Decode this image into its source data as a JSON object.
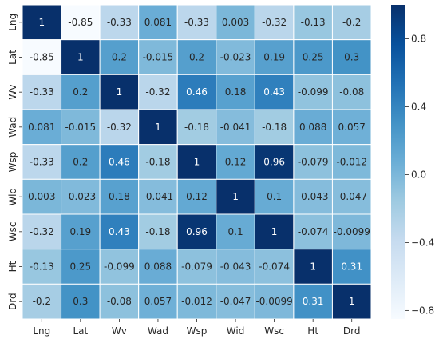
{
  "chart_data": {
    "type": "heatmap",
    "title": "",
    "xlabel": "",
    "ylabel": "",
    "x_labels": [
      "Lng",
      "Lat",
      "Wv",
      "Wad",
      "Wsp",
      "Wid",
      "Wsc",
      "Ht",
      "Drd"
    ],
    "y_labels": [
      "Lng",
      "Lat",
      "Wv",
      "Wad",
      "Wsp",
      "Wid",
      "Wsc",
      "Ht",
      "Drd"
    ],
    "values": [
      [
        1,
        -0.85,
        -0.33,
        0.081,
        -0.33,
        0.003,
        -0.32,
        -0.13,
        -0.2
      ],
      [
        -0.85,
        1,
        0.2,
        -0.015,
        0.2,
        -0.023,
        0.19,
        0.25,
        0.3
      ],
      [
        -0.33,
        0.2,
        1,
        -0.32,
        0.46,
        0.18,
        0.43,
        -0.099,
        -0.08
      ],
      [
        0.081,
        -0.015,
        -0.32,
        1,
        -0.18,
        -0.041,
        -0.18,
        0.088,
        0.057
      ],
      [
        -0.33,
        0.2,
        0.46,
        -0.18,
        1,
        0.12,
        0.96,
        -0.079,
        -0.012
      ],
      [
        0.003,
        -0.023,
        0.18,
        -0.041,
        0.12,
        1,
        0.1,
        -0.043,
        -0.047
      ],
      [
        -0.32,
        0.19,
        0.43,
        -0.18,
        0.96,
        0.1,
        1,
        -0.074,
        -0.0099
      ],
      [
        -0.13,
        0.25,
        -0.099,
        0.088,
        -0.079,
        -0.043,
        -0.074,
        1,
        0.31
      ],
      [
        -0.2,
        0.3,
        -0.08,
        0.057,
        -0.012,
        -0.047,
        -0.0099,
        0.31,
        1
      ]
    ],
    "cell_labels": [
      [
        "1",
        "-0.85",
        "-0.33",
        "0.081",
        "-0.33",
        "0.003",
        "-0.32",
        "-0.13",
        "-0.2"
      ],
      [
        "-0.85",
        "1",
        "0.2",
        "-0.015",
        "0.2",
        "-0.023",
        "0.19",
        "0.25",
        "0.3"
      ],
      [
        "-0.33",
        "0.2",
        "1",
        "-0.32",
        "0.46",
        "0.18",
        "0.43",
        "-0.099",
        "-0.08"
      ],
      [
        "0.081",
        "-0.015",
        "-0.32",
        "1",
        "-0.18",
        "-0.041",
        "-0.18",
        "0.088",
        "0.057"
      ],
      [
        "-0.33",
        "0.2",
        "0.46",
        "-0.18",
        "1",
        "0.12",
        "0.96",
        "-0.079",
        "-0.012"
      ],
      [
        "0.003",
        "-0.023",
        "0.18",
        "-0.041",
        "0.12",
        "1",
        "0.1",
        "-0.043",
        "-0.047"
      ],
      [
        "-0.32",
        "0.19",
        "0.43",
        "-0.18",
        "0.96",
        "0.1",
        "1",
        "-0.074",
        "-0.0099"
      ],
      [
        "-0.13",
        "0.25",
        "-0.099",
        "0.088",
        "-0.079",
        "-0.043",
        "-0.074",
        "1",
        "0.31"
      ],
      [
        "-0.2",
        "0.3",
        "-0.08",
        "0.057",
        "-0.012",
        "-0.047",
        "-0.0099",
        "0.31",
        "1"
      ]
    ],
    "colormap": "Blues",
    "color_range": [
      -0.85,
      1
    ],
    "colorbar": {
      "ticks": [
        0.8,
        0.4,
        0.0,
        -0.4,
        -0.8
      ],
      "tick_labels": [
        "0.8",
        "0.4",
        "0.0",
        "−0.4",
        "−0.8"
      ]
    },
    "grid": "white cell separators",
    "legend": "colorbar-right"
  }
}
